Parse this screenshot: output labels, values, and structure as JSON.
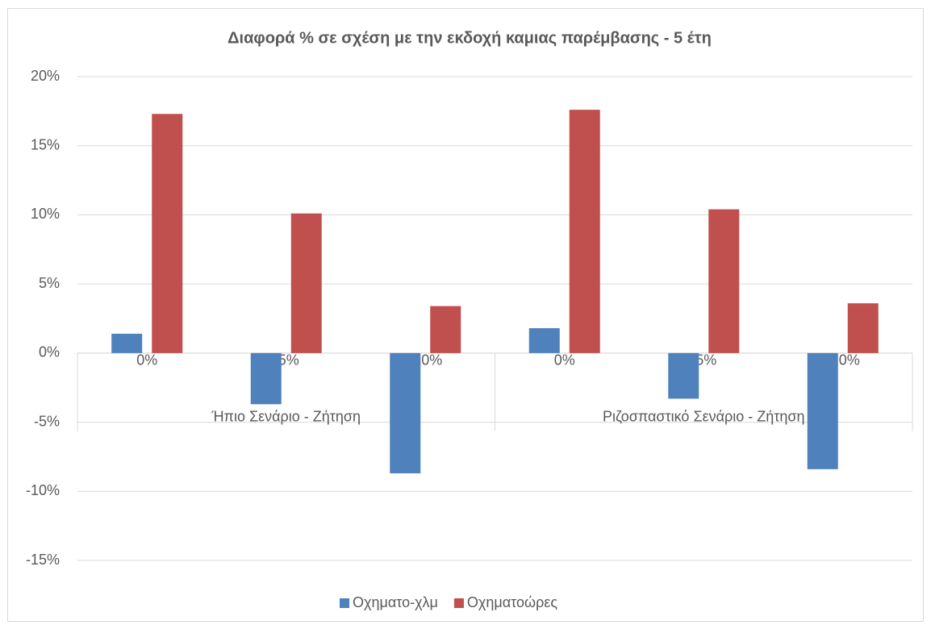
{
  "chart_data": {
    "type": "bar",
    "title": "Διαφορά % σε σχέση με την εκδοχή καμιας παρέμβασης - 5 έτη",
    "categories": [
      "0%",
      "-5%",
      "-10%",
      "0%",
      "-5%",
      "-10%"
    ],
    "groups": [
      "Ήπιο  Σενάριο - Ζήτηση",
      "Ριζοσπαστικό Σενάριο - Ζήτηση"
    ],
    "series": [
      {
        "name": "Οχηματο-χλμ",
        "color": "#4f81bd",
        "values": [
          1.4,
          -3.7,
          -8.7,
          1.8,
          -3.3,
          -8.4
        ]
      },
      {
        "name": "Οχηματοώρες",
        "color": "#c0504d",
        "values": [
          17.3,
          10.1,
          3.4,
          17.6,
          10.4,
          3.6
        ]
      }
    ],
    "ylim": [
      -15,
      20
    ],
    "yticks": [
      {
        "value": -15,
        "label": "-15%"
      },
      {
        "value": -10,
        "label": "-10%"
      },
      {
        "value": -5,
        "label": "-5%"
      },
      {
        "value": 0,
        "label": "0%"
      },
      {
        "value": 5,
        "label": "5%"
      },
      {
        "value": 10,
        "label": "10%"
      },
      {
        "value": 15,
        "label": "15%"
      },
      {
        "value": 20,
        "label": "20%"
      }
    ],
    "grid": true,
    "legend": "bottom"
  }
}
